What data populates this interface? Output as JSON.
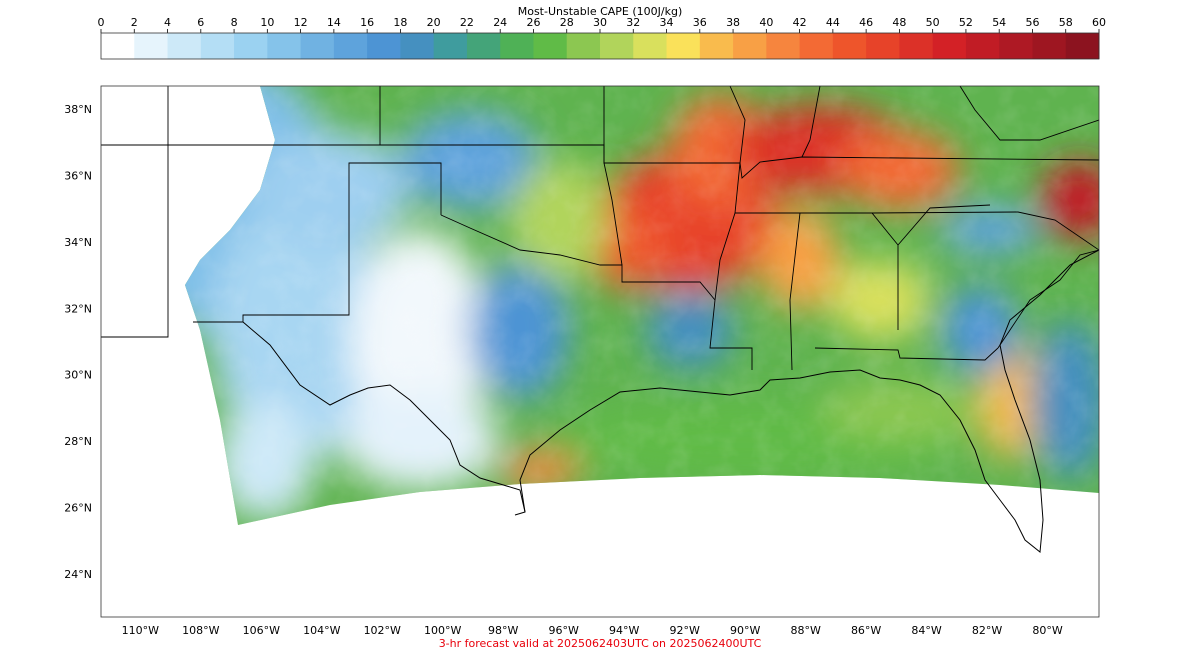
{
  "colorbar": {
    "title": "Most-Unstable CAPE (100J/kg)",
    "ticks": [
      "0",
      "2",
      "4",
      "6",
      "8",
      "10",
      "12",
      "14",
      "16",
      "18",
      "20",
      "22",
      "24",
      "26",
      "28",
      "30",
      "32",
      "34",
      "36",
      "38",
      "40",
      "42",
      "44",
      "46",
      "48",
      "50",
      "52",
      "54",
      "56",
      "58",
      "60"
    ],
    "colors": [
      "#ffffff",
      "#e6f4fc",
      "#cde9f8",
      "#b4def5",
      "#9bd2f1",
      "#85c3ea",
      "#70b2e2",
      "#5ea3dc",
      "#4d94d4",
      "#4590c0",
      "#3f9c9e",
      "#44a479",
      "#4fb156",
      "#60bb47",
      "#8cc751",
      "#b1d45b",
      "#d9e05d",
      "#fae15a",
      "#f9bb4d",
      "#f8a045",
      "#f6853e",
      "#f36a34",
      "#ee552b",
      "#e74329",
      "#dc3128",
      "#d32126",
      "#c11c25",
      "#ae1924",
      "#9e1621",
      "#8c131f"
    ],
    "scale_min": 0,
    "scale_max": 60
  },
  "map": {
    "lat_labels": [
      "38°N",
      "36°N",
      "34°N",
      "32°N",
      "30°N",
      "28°N",
      "26°N",
      "24°N"
    ],
    "lon_labels": [
      "110°W",
      "108°W",
      "106°W",
      "104°W",
      "102°W",
      "100°W",
      "98°W",
      "96°W",
      "94°W",
      "92°W",
      "90°W",
      "88°W",
      "86°W",
      "84°W",
      "82°W",
      "80°W"
    ],
    "extent": {
      "lon_min": -111.3,
      "lon_max": -78.3,
      "lat_min": 22.7,
      "lat_max": 38.7
    }
  },
  "footer": {
    "text": "3-hr forecast valid at 2025062403UTC on 2025062400UTC",
    "color": "#e8000b"
  }
}
